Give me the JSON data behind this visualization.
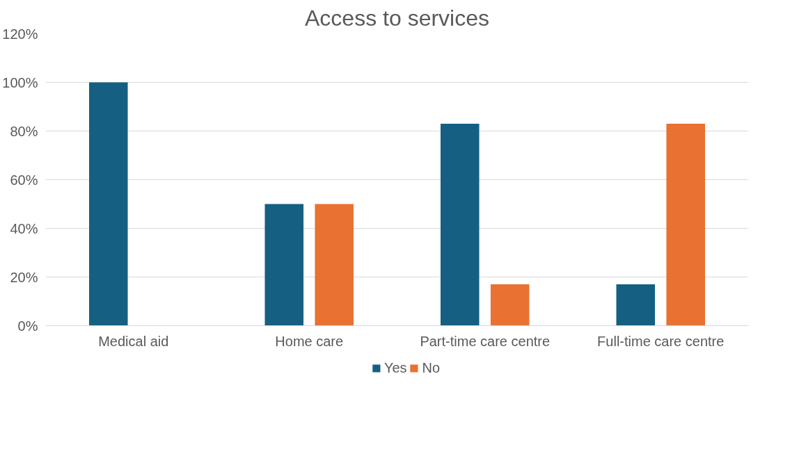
{
  "chart_data": {
    "type": "bar",
    "title": "Access to services",
    "categories": [
      "Medical aid",
      "Home care",
      "Part-time care centre",
      "Full-time care centre"
    ],
    "series": [
      {
        "name": "Yes",
        "color": "#156082",
        "values": [
          100,
          50,
          83,
          17
        ]
      },
      {
        "name": "No",
        "color": "#e97132",
        "values": [
          0,
          50,
          17,
          83
        ]
      }
    ],
    "ylim": [
      0,
      120
    ],
    "yticks": [
      {
        "value": 0,
        "label": "0%"
      },
      {
        "value": 20,
        "label": "20%"
      },
      {
        "value": 40,
        "label": "40%"
      },
      {
        "value": 60,
        "label": "60%"
      },
      {
        "value": 80,
        "label": "80%"
      },
      {
        "value": 100,
        "label": "100%"
      },
      {
        "value": 120,
        "label": "120%"
      }
    ],
    "grid": "y",
    "legend": "bottom"
  }
}
